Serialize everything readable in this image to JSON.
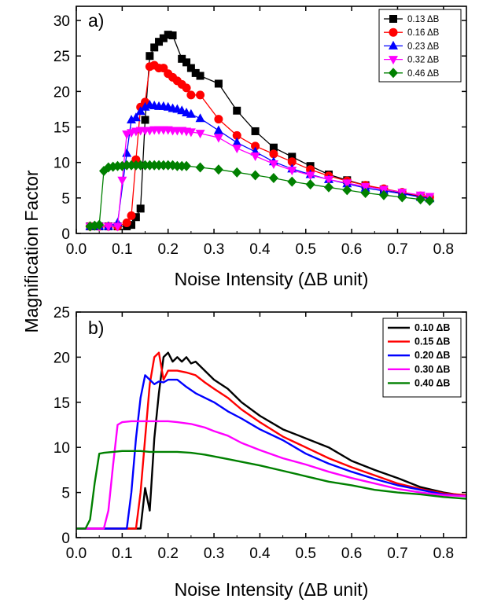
{
  "figure": {
    "ylabel": "Magnification Factor"
  },
  "chart_data": [
    {
      "panel": "a)",
      "type": "line",
      "markers": true,
      "xlabel": "Noise Intensity (ΔB unit)",
      "ylabel": "Magnification Factor",
      "xlim": [
        0.0,
        0.85
      ],
      "ylim": [
        0,
        32
      ],
      "xticks": [
        "0.0",
        "0.1",
        "0.2",
        "0.3",
        "0.4",
        "0.5",
        "0.6",
        "0.7",
        "0.8"
      ],
      "yticks": [
        "0",
        "5",
        "10",
        "15",
        "20",
        "25",
        "30"
      ],
      "legend_position": "top-right",
      "series": [
        {
          "name": "0.13 ΔB",
          "color": "#000000",
          "marker": "square",
          "x": [
            0.03,
            0.05,
            0.07,
            0.09,
            0.11,
            0.12,
            0.13,
            0.14,
            0.15,
            0.16,
            0.17,
            0.18,
            0.19,
            0.2,
            0.21,
            0.23,
            0.24,
            0.25,
            0.26,
            0.27,
            0.31,
            0.35,
            0.39,
            0.43,
            0.47,
            0.51,
            0.55,
            0.59,
            0.63,
            0.67,
            0.71,
            0.75,
            0.77
          ],
          "y": [
            1,
            1,
            1,
            1,
            1,
            1.2,
            2.3,
            3.5,
            16,
            25,
            26.2,
            27,
            27.5,
            28,
            27.9,
            24.6,
            24.1,
            23.3,
            22.6,
            22.2,
            21.1,
            17.3,
            14.4,
            12.1,
            10.8,
            9.5,
            8.3,
            7.5,
            6.8,
            6.2,
            5.7,
            5.2,
            5.0
          ]
        },
        {
          "name": "0.16 ΔB",
          "color": "#ff0000",
          "marker": "circle",
          "x": [
            0.03,
            0.05,
            0.07,
            0.09,
            0.11,
            0.12,
            0.13,
            0.14,
            0.15,
            0.16,
            0.17,
            0.18,
            0.19,
            0.2,
            0.21,
            0.22,
            0.23,
            0.24,
            0.25,
            0.27,
            0.31,
            0.35,
            0.39,
            0.43,
            0.47,
            0.51,
            0.55,
            0.59,
            0.63,
            0.67,
            0.71,
            0.75,
            0.77
          ],
          "y": [
            1,
            1,
            1,
            1,
            1.5,
            2.5,
            10.4,
            17.8,
            18.5,
            23.5,
            23.7,
            23.3,
            23.3,
            22.5,
            22,
            21.5,
            21,
            20.5,
            19.5,
            19.5,
            16.1,
            13.8,
            12.3,
            11.2,
            10.1,
            9.0,
            8.1,
            7.4,
            6.8,
            6.3,
            5.8,
            5.3,
            5.1
          ]
        },
        {
          "name": "0.23 ΔB",
          "color": "#0000ff",
          "marker": "triangle-up",
          "x": [
            0.03,
            0.05,
            0.07,
            0.09,
            0.11,
            0.12,
            0.13,
            0.14,
            0.15,
            0.16,
            0.17,
            0.18,
            0.19,
            0.2,
            0.21,
            0.22,
            0.23,
            0.24,
            0.25,
            0.27,
            0.31,
            0.35,
            0.39,
            0.43,
            0.47,
            0.51,
            0.55,
            0.59,
            0.63,
            0.67,
            0.71,
            0.75,
            0.77
          ],
          "y": [
            1,
            1,
            1,
            1.5,
            11.3,
            16,
            16.3,
            17.2,
            17.8,
            18.1,
            18.0,
            17.9,
            17.9,
            17.8,
            17.6,
            17.5,
            17.3,
            17.0,
            16.8,
            16.2,
            14.5,
            12.8,
            11.5,
            10.1,
            9.1,
            8.3,
            7.6,
            7.0,
            6.4,
            6.0,
            5.6,
            5.1,
            4.9
          ]
        },
        {
          "name": "0.32 ΔB",
          "color": "#ff00ff",
          "marker": "triangle-down",
          "x": [
            0.03,
            0.05,
            0.07,
            0.09,
            0.1,
            0.11,
            0.12,
            0.13,
            0.14,
            0.15,
            0.16,
            0.17,
            0.18,
            0.19,
            0.2,
            0.21,
            0.22,
            0.23,
            0.24,
            0.25,
            0.27,
            0.31,
            0.35,
            0.39,
            0.43,
            0.47,
            0.51,
            0.55,
            0.59,
            0.63,
            0.67,
            0.71,
            0.75,
            0.77
          ],
          "y": [
            1,
            1,
            1,
            1,
            7.5,
            14.0,
            14.2,
            14.4,
            14.5,
            14.5,
            14.5,
            14.6,
            14.6,
            14.6,
            14.6,
            14.5,
            14.5,
            14.5,
            14.4,
            14.3,
            14.1,
            13.5,
            12.0,
            10.9,
            9.8,
            8.9,
            8.2,
            7.6,
            7.1,
            6.6,
            6.2,
            5.8,
            5.4,
            5.2
          ]
        },
        {
          "name": "0.46 ΔB",
          "color": "#008000",
          "marker": "diamond",
          "x": [
            0.03,
            0.04,
            0.05,
            0.06,
            0.07,
            0.08,
            0.09,
            0.1,
            0.11,
            0.12,
            0.13,
            0.14,
            0.15,
            0.16,
            0.17,
            0.18,
            0.19,
            0.2,
            0.21,
            0.22,
            0.23,
            0.24,
            0.27,
            0.31,
            0.35,
            0.39,
            0.43,
            0.47,
            0.51,
            0.55,
            0.59,
            0.63,
            0.67,
            0.71,
            0.75,
            0.77
          ],
          "y": [
            1,
            1.1,
            1.2,
            8.8,
            9.3,
            9.4,
            9.5,
            9.5,
            9.6,
            9.6,
            9.6,
            9.6,
            9.6,
            9.6,
            9.6,
            9.6,
            9.6,
            9.6,
            9.6,
            9.5,
            9.5,
            9.5,
            9.3,
            9.0,
            8.6,
            8.2,
            7.8,
            7.3,
            6.9,
            6.5,
            6.1,
            5.7,
            5.4,
            5.1,
            4.8,
            4.6
          ]
        }
      ]
    },
    {
      "panel": "b)",
      "type": "line",
      "markers": false,
      "xlabel": "Noise Intensity (ΔB unit)",
      "ylabel": "Magnification Factor",
      "xlim": [
        0.0,
        0.85
      ],
      "ylim": [
        0,
        25
      ],
      "xticks": [
        "0.0",
        "0.1",
        "0.2",
        "0.3",
        "0.4",
        "0.5",
        "0.6",
        "0.7",
        "0.8"
      ],
      "yticks": [
        "0",
        "5",
        "10",
        "15",
        "20",
        "25"
      ],
      "legend_position": "top-right",
      "series": [
        {
          "name": "0.10 ΔB",
          "color": "#000000",
          "x": [
            0.0,
            0.05,
            0.1,
            0.14,
            0.15,
            0.16,
            0.17,
            0.18,
            0.19,
            0.2,
            0.21,
            0.22,
            0.23,
            0.24,
            0.25,
            0.26,
            0.28,
            0.3,
            0.33,
            0.36,
            0.4,
            0.45,
            0.5,
            0.55,
            0.6,
            0.65,
            0.7,
            0.75,
            0.8,
            0.85
          ],
          "y": [
            1,
            1,
            1,
            1,
            5.5,
            3,
            11,
            16,
            20,
            20.5,
            19.5,
            20,
            19.5,
            20,
            19.3,
            19.5,
            18.5,
            17.5,
            16.5,
            15,
            13.5,
            12,
            11,
            10,
            8.5,
            7.5,
            6.6,
            5.6,
            5.0,
            4.6
          ]
        },
        {
          "name": "0.15 ΔB",
          "color": "#ff0000",
          "x": [
            0.0,
            0.05,
            0.1,
            0.13,
            0.14,
            0.15,
            0.16,
            0.17,
            0.18,
            0.19,
            0.2,
            0.21,
            0.22,
            0.24,
            0.26,
            0.28,
            0.3,
            0.33,
            0.36,
            0.4,
            0.45,
            0.5,
            0.55,
            0.6,
            0.65,
            0.7,
            0.75,
            0.8,
            0.85
          ],
          "y": [
            1,
            1,
            1,
            1,
            5,
            11,
            17,
            20,
            20.5,
            17.5,
            18.5,
            18.5,
            18.5,
            18.3,
            18,
            17.2,
            16.5,
            15.5,
            14.2,
            12.8,
            11.2,
            10,
            8.8,
            7.8,
            6.9,
            6.0,
            5.4,
            4.9,
            4.7
          ]
        },
        {
          "name": "0.20 ΔB",
          "color": "#0000ff",
          "x": [
            0.0,
            0.05,
            0.1,
            0.11,
            0.12,
            0.13,
            0.14,
            0.15,
            0.16,
            0.17,
            0.18,
            0.19,
            0.2,
            0.21,
            0.22,
            0.24,
            0.26,
            0.28,
            0.3,
            0.33,
            0.36,
            0.4,
            0.45,
            0.5,
            0.55,
            0.6,
            0.65,
            0.7,
            0.75,
            0.8,
            0.85
          ],
          "y": [
            1,
            1,
            1,
            1,
            5,
            11,
            15.5,
            18,
            17.5,
            17,
            17.3,
            17.2,
            17.5,
            17.5,
            17.5,
            16.7,
            16,
            15.5,
            15,
            14,
            13.2,
            12,
            10.8,
            9.3,
            8.2,
            7.3,
            6.5,
            5.8,
            5.3,
            4.8,
            4.6
          ]
        },
        {
          "name": "0.30 ΔB",
          "color": "#ff00ff",
          "x": [
            0.0,
            0.04,
            0.06,
            0.07,
            0.08,
            0.09,
            0.1,
            0.12,
            0.14,
            0.16,
            0.18,
            0.2,
            0.22,
            0.25,
            0.28,
            0.3,
            0.33,
            0.36,
            0.4,
            0.45,
            0.5,
            0.55,
            0.6,
            0.65,
            0.7,
            0.75,
            0.8,
            0.85
          ],
          "y": [
            1,
            1,
            1,
            3,
            8,
            12.5,
            12.8,
            12.9,
            12.9,
            12.9,
            12.9,
            12.9,
            12.8,
            12.6,
            12.2,
            11.8,
            11.3,
            10.5,
            9.7,
            8.8,
            8.1,
            7.3,
            6.6,
            6.0,
            5.4,
            5.0,
            4.7,
            4.6
          ]
        },
        {
          "name": "0.40 ΔB",
          "color": "#008000",
          "x": [
            0.0,
            0.02,
            0.03,
            0.04,
            0.05,
            0.06,
            0.08,
            0.1,
            0.12,
            0.14,
            0.16,
            0.18,
            0.2,
            0.22,
            0.25,
            0.28,
            0.3,
            0.33,
            0.36,
            0.4,
            0.45,
            0.5,
            0.55,
            0.6,
            0.65,
            0.7,
            0.75,
            0.8,
            0.85
          ],
          "y": [
            1,
            1,
            2,
            6,
            9.3,
            9.4,
            9.5,
            9.6,
            9.6,
            9.6,
            9.5,
            9.5,
            9.5,
            9.5,
            9.4,
            9.2,
            9.0,
            8.7,
            8.4,
            8.0,
            7.4,
            6.8,
            6.2,
            5.8,
            5.3,
            5.0,
            4.8,
            4.5,
            4.3
          ]
        }
      ]
    }
  ]
}
